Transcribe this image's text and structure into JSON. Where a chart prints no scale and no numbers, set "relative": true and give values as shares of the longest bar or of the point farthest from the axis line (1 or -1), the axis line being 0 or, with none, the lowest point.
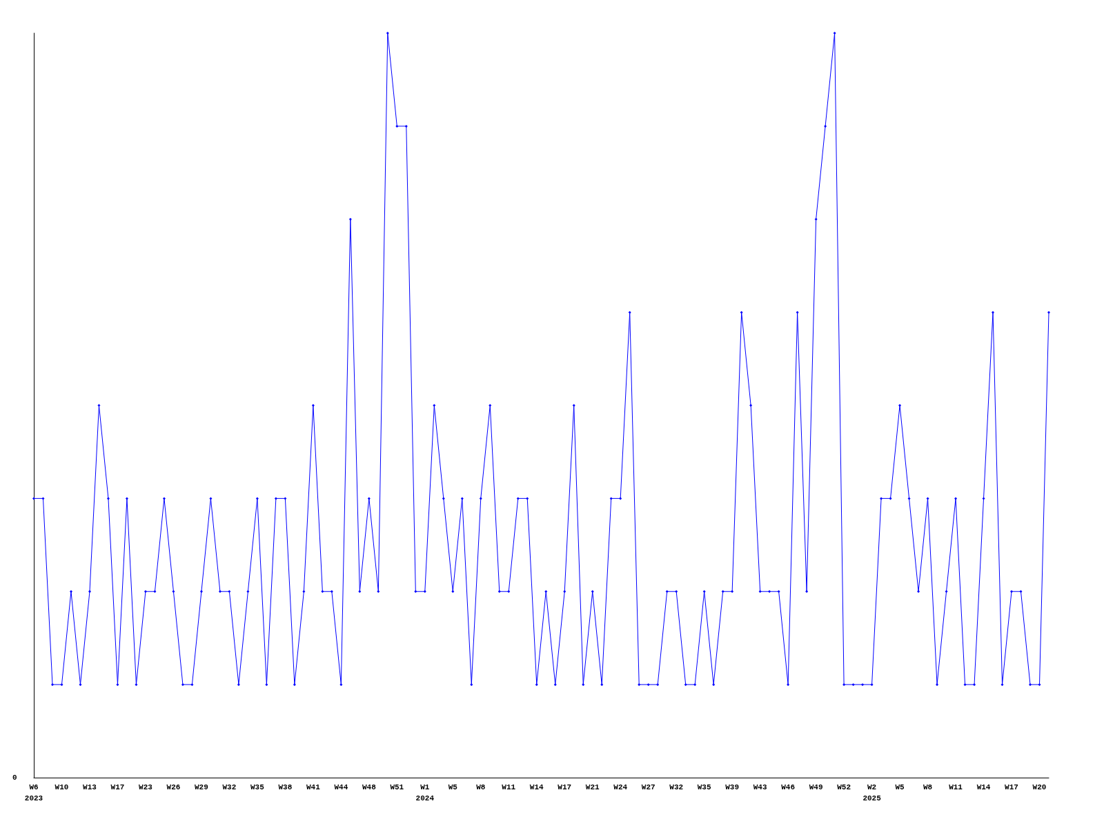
{
  "chart_data": {
    "type": "line",
    "relative": true,
    "marker": "diamond",
    "grid": false,
    "annotations": [
      "0"
    ],
    "categories": [
      "W6\n2023",
      null,
      null,
      "W10",
      null,
      null,
      "W13",
      null,
      null,
      "W17",
      null,
      null,
      "W23",
      null,
      null,
      "W26",
      null,
      null,
      "W29",
      null,
      null,
      "W32",
      null,
      null,
      "W35",
      null,
      null,
      "W38",
      null,
      null,
      "W41",
      null,
      null,
      "W44",
      null,
      null,
      "W48",
      null,
      null,
      "W51",
      null,
      null,
      "W1\n2024",
      null,
      null,
      "W5",
      null,
      null,
      "W8",
      null,
      null,
      "W11",
      null,
      null,
      "W14",
      null,
      null,
      "W17",
      null,
      null,
      "W21",
      null,
      null,
      "W24",
      null,
      null,
      "W27",
      null,
      null,
      "W32",
      null,
      null,
      "W35",
      null,
      null,
      "W39",
      null,
      null,
      "W43",
      null,
      null,
      "W46",
      null,
      null,
      "W49",
      null,
      null,
      "W52",
      null,
      null,
      "W2\n2025",
      null,
      null,
      "W5",
      null,
      null,
      "W8",
      null,
      null,
      "W11",
      null,
      null,
      "W14",
      null,
      null,
      "W17",
      null,
      null,
      "W20",
      null
    ],
    "series": [
      {
        "color": "#0000ff",
        "values": [
          0.375,
          0.375,
          0.125,
          0.125,
          0.25,
          0.125,
          0.25,
          0.5,
          0.375,
          0.125,
          0.375,
          0.125,
          0.25,
          0.25,
          0.375,
          0.25,
          0.125,
          0.125,
          0.25,
          0.375,
          0.25,
          0.25,
          0.125,
          0.25,
          0.375,
          0.125,
          0.375,
          0.375,
          0.125,
          0.25,
          0.5,
          0.25,
          0.25,
          0.125,
          0.75,
          0.25,
          0.375,
          0.25,
          1,
          0.875,
          0.875,
          0.25,
          0.25,
          0.5,
          0.375,
          0.25,
          0.375,
          0.125,
          0.375,
          0.5,
          0.25,
          0.25,
          0.375,
          0.375,
          0.125,
          0.25,
          0.125,
          0.25,
          0.5,
          0.125,
          0.25,
          0.125,
          0.375,
          0.375,
          0.625,
          0.125,
          0.125,
          0.125,
          0.25,
          0.25,
          0.125,
          0.125,
          0.25,
          0.125,
          0.25,
          0.25,
          0.625,
          0.5,
          0.25,
          0.25,
          0.25,
          0.125,
          0.625,
          0.25,
          0.75,
          0.875,
          1,
          0.125,
          0.125,
          0.125,
          0.125,
          0.375,
          0.375,
          0.5,
          0.375,
          0.25,
          0.375,
          0.125,
          0.25,
          0.375,
          0.125,
          0.125,
          0.375,
          0.625,
          0.125,
          0.25,
          0.25,
          0.125,
          0.125,
          0.625
        ]
      }
    ]
  }
}
